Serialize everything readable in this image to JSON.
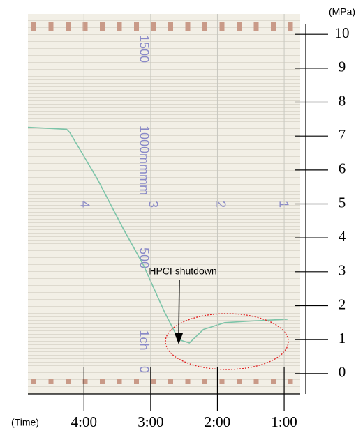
{
  "chart_data": {
    "type": "line",
    "y_label": "(MPa)",
    "x_label": "(Time)",
    "annotation": "HPCI shutdown",
    "x": [
      4.84,
      4.26,
      4.21,
      3.79,
      3.42,
      3.11,
      2.79,
      2.58,
      2.42,
      2.21,
      1.89,
      1.47,
      0.95
    ],
    "series": [
      {
        "color": "#7cc4a8",
        "values": [
          7.26,
          7.2,
          7.1,
          5.7,
          4.3,
          3.2,
          1.8,
          1.0,
          0.9,
          1.3,
          1.5,
          1.55,
          1.6
        ]
      }
    ],
    "xlim": [
      4.84,
      0.76
    ],
    "xticks": [
      {
        "value": 4,
        "label": "4:00"
      },
      {
        "value": 3,
        "label": "3:00"
      },
      {
        "value": 2,
        "label": "2:00"
      },
      {
        "value": 1,
        "label": "1:00"
      }
    ],
    "ylim": [
      -0.6,
      10.6
    ],
    "yticks": [
      0,
      1,
      2,
      3,
      4,
      5,
      6,
      7,
      8,
      9,
      10
    ],
    "paper_labels": [
      "4",
      "mm",
      "3",
      "2",
      "1",
      "1500",
      "1000mm",
      "500",
      "1ch",
      "0"
    ]
  }
}
